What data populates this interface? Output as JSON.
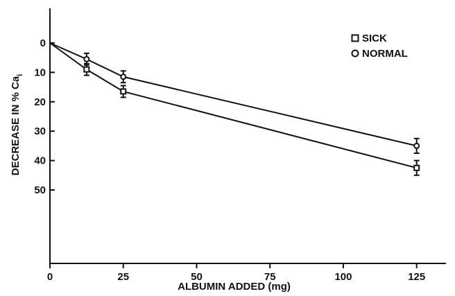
{
  "chart_data": {
    "type": "line",
    "xlabel": "ALBUMIN ADDED (mg)",
    "ylabel": "DECREASE IN % Ca",
    "ylabel_subscript": "i",
    "xlim": [
      0,
      135
    ],
    "ylim": [
      0,
      75
    ],
    "y_inverted": true,
    "x_ticks": [
      0,
      25,
      50,
      75,
      100,
      125
    ],
    "y_ticks": [
      0,
      10,
      20,
      30,
      40,
      50
    ],
    "grid": false,
    "legend_position": "top-right",
    "series": [
      {
        "name": "SICK",
        "marker": "square",
        "x": [
          0,
          12.5,
          25,
          125
        ],
        "y": [
          0,
          9,
          16.5,
          42.5
        ],
        "err": [
          0,
          2,
          2,
          2.5
        ]
      },
      {
        "name": "NORMAL",
        "marker": "circle",
        "x": [
          0,
          12.5,
          25,
          125
        ],
        "y": [
          0,
          5.5,
          11.5,
          35
        ],
        "err": [
          0,
          2,
          2,
          2.5
        ]
      }
    ]
  }
}
